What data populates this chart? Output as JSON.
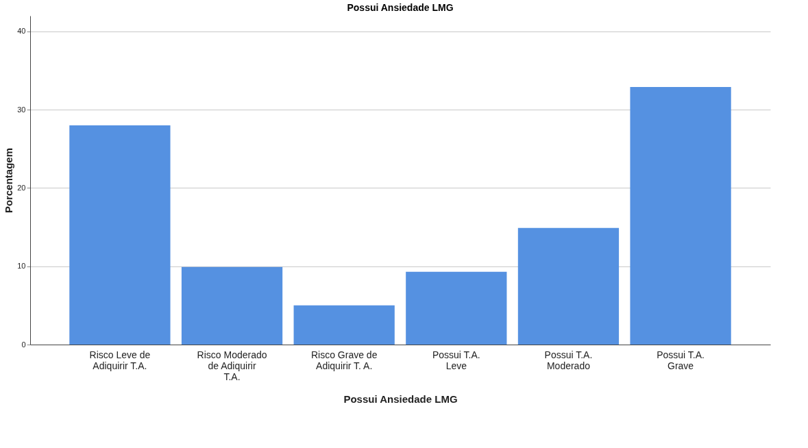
{
  "chart_data": {
    "type": "bar",
    "title": "Possui Ansiedade LMG",
    "xlabel": "Possui Ansiedade LMG",
    "ylabel": "Porcentagem",
    "categories": [
      "Risco Leve de Adiquirir T.A.",
      "Risco Moderado de Adiquirir T.A.",
      "Risco Grave de Adiquirir T. A.",
      "Possui T.A. Leve",
      "Possui T.A. Moderado",
      "Possui T.A. Grave"
    ],
    "values": [
      28,
      9.9,
      5,
      9.3,
      14.9,
      32.9
    ],
    "color": "#5591e1",
    "ylim": [
      0,
      42
    ],
    "yticks": [
      0,
      10,
      20,
      30,
      40
    ],
    "grid": "y"
  }
}
